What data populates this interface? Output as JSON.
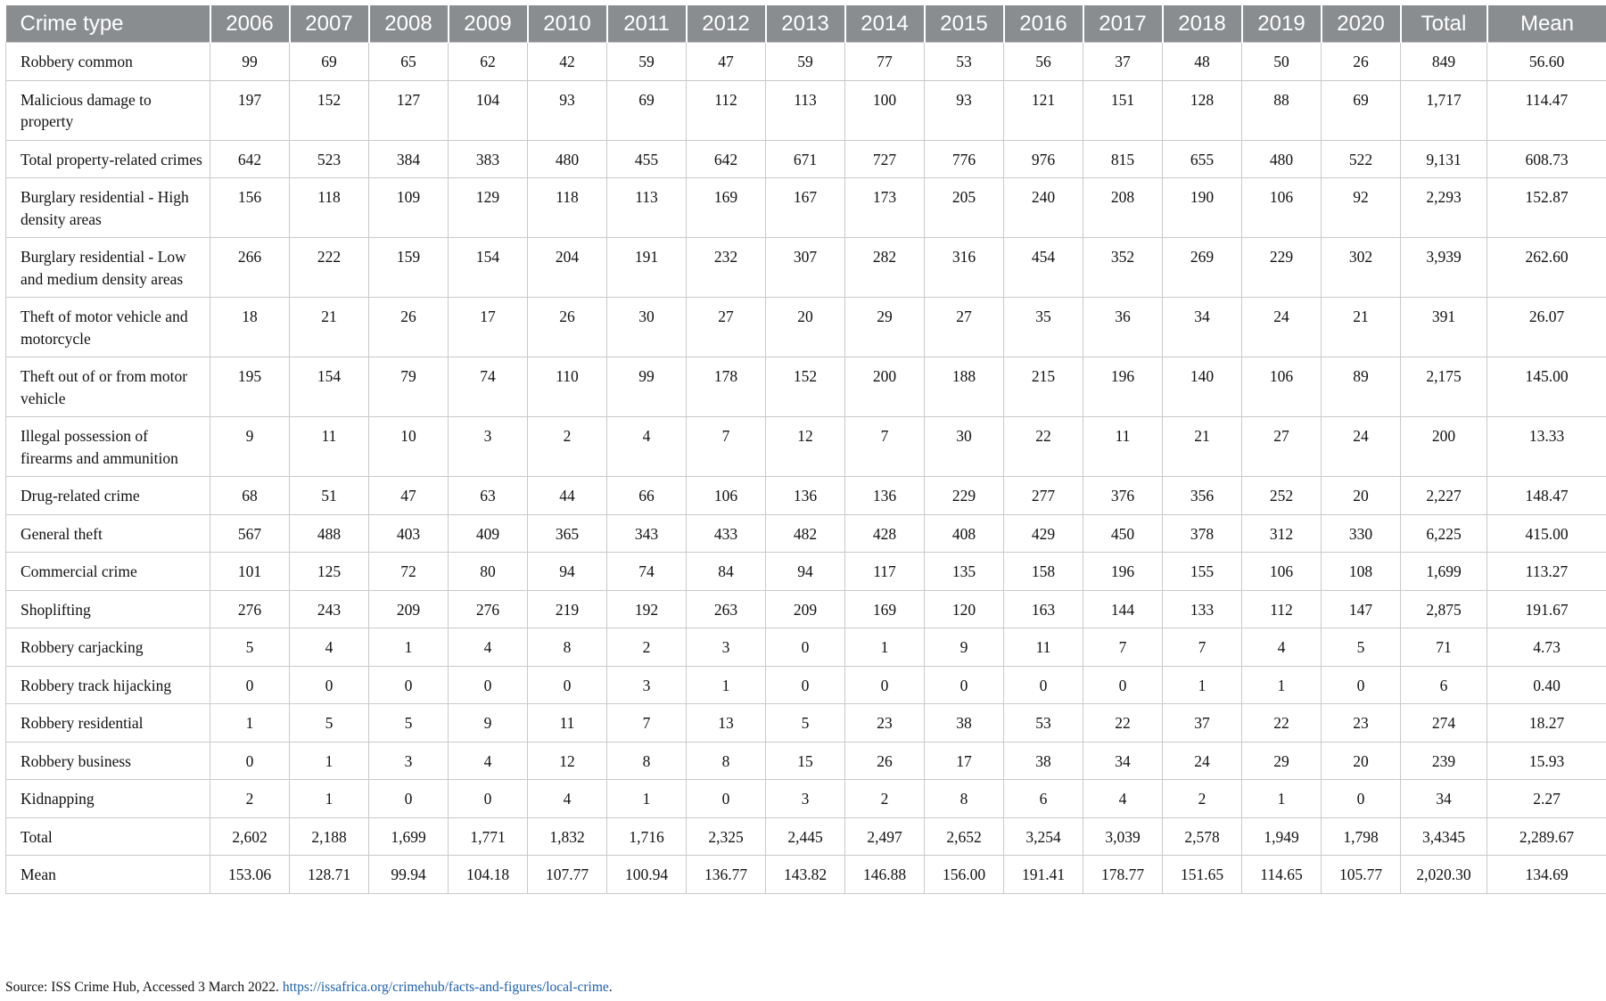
{
  "table": {
    "headers": [
      "Crime type",
      "2006",
      "2007",
      "2008",
      "2009",
      "2010",
      "2011",
      "2012",
      "2013",
      "2014",
      "2015",
      "2016",
      "2017",
      "2018",
      "2019",
      "2020",
      "Total",
      "Mean"
    ],
    "rows": [
      [
        "Robbery common",
        "99",
        "69",
        "65",
        "62",
        "42",
        "59",
        "47",
        "59",
        "77",
        "53",
        "56",
        "37",
        "48",
        "50",
        "26",
        "849",
        "56.60"
      ],
      [
        "Malicious damage to property",
        "197",
        "152",
        "127",
        "104",
        "93",
        "69",
        "112",
        "113",
        "100",
        "93",
        "121",
        "151",
        "128",
        "88",
        "69",
        "1,717",
        "114.47"
      ],
      [
        "Total property-related crimes",
        "642",
        "523",
        "384",
        "383",
        "480",
        "455",
        "642",
        "671",
        "727",
        "776",
        "976",
        "815",
        "655",
        "480",
        "522",
        "9,131",
        "608.73"
      ],
      [
        "Burglary residential - High density areas",
        "156",
        "118",
        "109",
        "129",
        "118",
        "113",
        "169",
        "167",
        "173",
        "205",
        "240",
        "208",
        "190",
        "106",
        "92",
        "2,293",
        "152.87"
      ],
      [
        "Burglary residential - Low and medium density areas",
        "266",
        "222",
        "159",
        "154",
        "204",
        "191",
        "232",
        "307",
        "282",
        "316",
        "454",
        "352",
        "269",
        "229",
        "302",
        "3,939",
        "262.60"
      ],
      [
        "Theft of motor vehicle and motorcycle",
        "18",
        "21",
        "26",
        "17",
        "26",
        "30",
        "27",
        "20",
        "29",
        "27",
        "35",
        "36",
        "34",
        "24",
        "21",
        "391",
        "26.07"
      ],
      [
        "Theft out of or from motor vehicle",
        "195",
        "154",
        "79",
        "74",
        "110",
        "99",
        "178",
        "152",
        "200",
        "188",
        "215",
        "196",
        "140",
        "106",
        "89",
        "2,175",
        "145.00"
      ],
      [
        "Illegal possession of firearms and ammunition",
        "9",
        "11",
        "10",
        "3",
        "2",
        "4",
        "7",
        "12",
        "7",
        "30",
        "22",
        "11",
        "21",
        "27",
        "24",
        "200",
        "13.33"
      ],
      [
        "Drug-related crime",
        "68",
        "51",
        "47",
        "63",
        "44",
        "66",
        "106",
        "136",
        "136",
        "229",
        "277",
        "376",
        "356",
        "252",
        "20",
        "2,227",
        "148.47"
      ],
      [
        "General theft",
        "567",
        "488",
        "403",
        "409",
        "365",
        "343",
        "433",
        "482",
        "428",
        "408",
        "429",
        "450",
        "378",
        "312",
        "330",
        "6,225",
        "415.00"
      ],
      [
        "Commercial crime",
        "101",
        "125",
        "72",
        "80",
        "94",
        "74",
        "84",
        "94",
        "117",
        "135",
        "158",
        "196",
        "155",
        "106",
        "108",
        "1,699",
        "113.27"
      ],
      [
        "Shoplifting",
        "276",
        "243",
        "209",
        "276",
        "219",
        "192",
        "263",
        "209",
        "169",
        "120",
        "163",
        "144",
        "133",
        "112",
        "147",
        "2,875",
        "191.67"
      ],
      [
        "Robbery carjacking",
        "5",
        "4",
        "1",
        "4",
        "8",
        "2",
        "3",
        "0",
        "1",
        "9",
        "11",
        "7",
        "7",
        "4",
        "5",
        "71",
        "4.73"
      ],
      [
        "Robbery track hijacking",
        "0",
        "0",
        "0",
        "0",
        "0",
        "3",
        "1",
        "0",
        "0",
        "0",
        "0",
        "0",
        "1",
        "1",
        "0",
        "6",
        "0.40"
      ],
      [
        "Robbery residential",
        "1",
        "5",
        "5",
        "9",
        "11",
        "7",
        "13",
        "5",
        "23",
        "38",
        "53",
        "22",
        "37",
        "22",
        "23",
        "274",
        "18.27"
      ],
      [
        "Robbery business",
        "0",
        "1",
        "3",
        "4",
        "12",
        "8",
        "8",
        "15",
        "26",
        "17",
        "38",
        "34",
        "24",
        "29",
        "20",
        "239",
        "15.93"
      ],
      [
        "Kidnapping",
        "2",
        "1",
        "0",
        "0",
        "4",
        "1",
        "0",
        "3",
        "2",
        "8",
        "6",
        "4",
        "2",
        "1",
        "0",
        "34",
        "2.27"
      ],
      [
        "Total",
        "2,602",
        "2,188",
        "1,699",
        "1,771",
        "1,832",
        "1,716",
        "2,325",
        "2,445",
        "2,497",
        "2,652",
        "3,254",
        "3,039",
        "2,578",
        "1,949",
        "1,798",
        "3,4345",
        "2,289.67"
      ],
      [
        "Mean",
        "153.06",
        "128.71",
        "99.94",
        "104.18",
        "107.77",
        "100.94",
        "136.77",
        "143.82",
        "146.88",
        "156.00",
        "191.41",
        "178.77",
        "151.65",
        "114.65",
        "105.77",
        "2,020.30",
        "134.69"
      ]
    ]
  },
  "source": {
    "text": "Source: ISS Crime Hub, Accessed 3 March 2022. ",
    "link": "https://issafrica.org/crimehub/facts-and-figures/local-crime",
    "suffix": "."
  },
  "colors": {
    "header_bg": "#8a8d90",
    "header_text": "#ffffff",
    "link": "#1b5fa8",
    "grid": "#c9c9c9"
  }
}
